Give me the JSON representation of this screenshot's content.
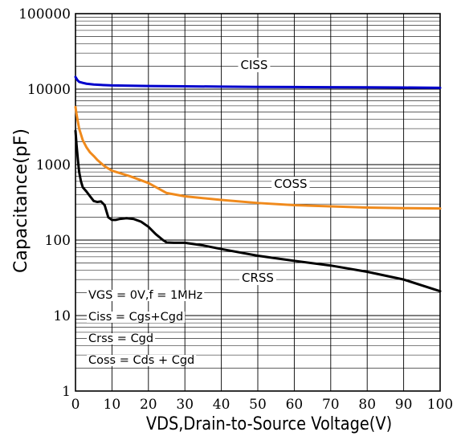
{
  "chart_data": {
    "type": "line",
    "xlabel": "VDS,Drain-to-Source Voltage(V)",
    "ylabel": "Capacitance(pF)",
    "xlim": [
      0,
      100
    ],
    "ylim": [
      1,
      100000
    ],
    "yscale": "log",
    "grid": true,
    "x_ticks": [
      "0",
      "10",
      "20",
      "30",
      "40",
      "50",
      "60",
      "70",
      "80",
      "90",
      "100"
    ],
    "y_ticks": [
      "1",
      "10",
      "100",
      "1000",
      "10000",
      "100000"
    ],
    "series": [
      {
        "name": "CISS",
        "color": "#0000cc",
        "x": [
          0,
          0.5,
          1,
          2,
          3,
          5,
          8,
          10,
          15,
          20,
          30,
          40,
          50,
          60,
          70,
          80,
          90,
          100
        ],
        "y": [
          14500,
          13200,
          12500,
          12100,
          11800,
          11500,
          11300,
          11200,
          11100,
          11000,
          10900,
          10800,
          10700,
          10650,
          10600,
          10550,
          10500,
          10400
        ]
      },
      {
        "name": "COSS",
        "color": "#f08a1c",
        "x": [
          0,
          0.3,
          0.7,
          1,
          2,
          3,
          4,
          5,
          6,
          8,
          10,
          15,
          20,
          25,
          30,
          40,
          50,
          60,
          70,
          80,
          90,
          100
        ],
        "y": [
          5800,
          4600,
          3600,
          3000,
          2100,
          1700,
          1450,
          1300,
          1150,
          950,
          830,
          700,
          570,
          420,
          380,
          340,
          310,
          290,
          280,
          270,
          265,
          262
        ]
      },
      {
        "name": "CRSS",
        "color": "#000000",
        "x": [
          0,
          0.3,
          0.7,
          1,
          1.5,
          2,
          3,
          4,
          5,
          6,
          7,
          8,
          9,
          10,
          11,
          12,
          14,
          16,
          18,
          20,
          22,
          24,
          25,
          27,
          30,
          35,
          40,
          50,
          60,
          70,
          80,
          90,
          100
        ],
        "y": [
          2800,
          1800,
          1100,
          800,
          600,
          500,
          440,
          380,
          330,
          320,
          325,
          290,
          200,
          185,
          185,
          190,
          195,
          190,
          175,
          150,
          120,
          100,
          93,
          92,
          92,
          85,
          76,
          62,
          53,
          46,
          38,
          30,
          21
        ]
      }
    ],
    "annotations": [
      "VGS  = 0V,f = 1MHz",
      "Ciss = Cgs+Cgd",
      "Crss = Cgd",
      "Coss = Cds + Cgd"
    ]
  }
}
